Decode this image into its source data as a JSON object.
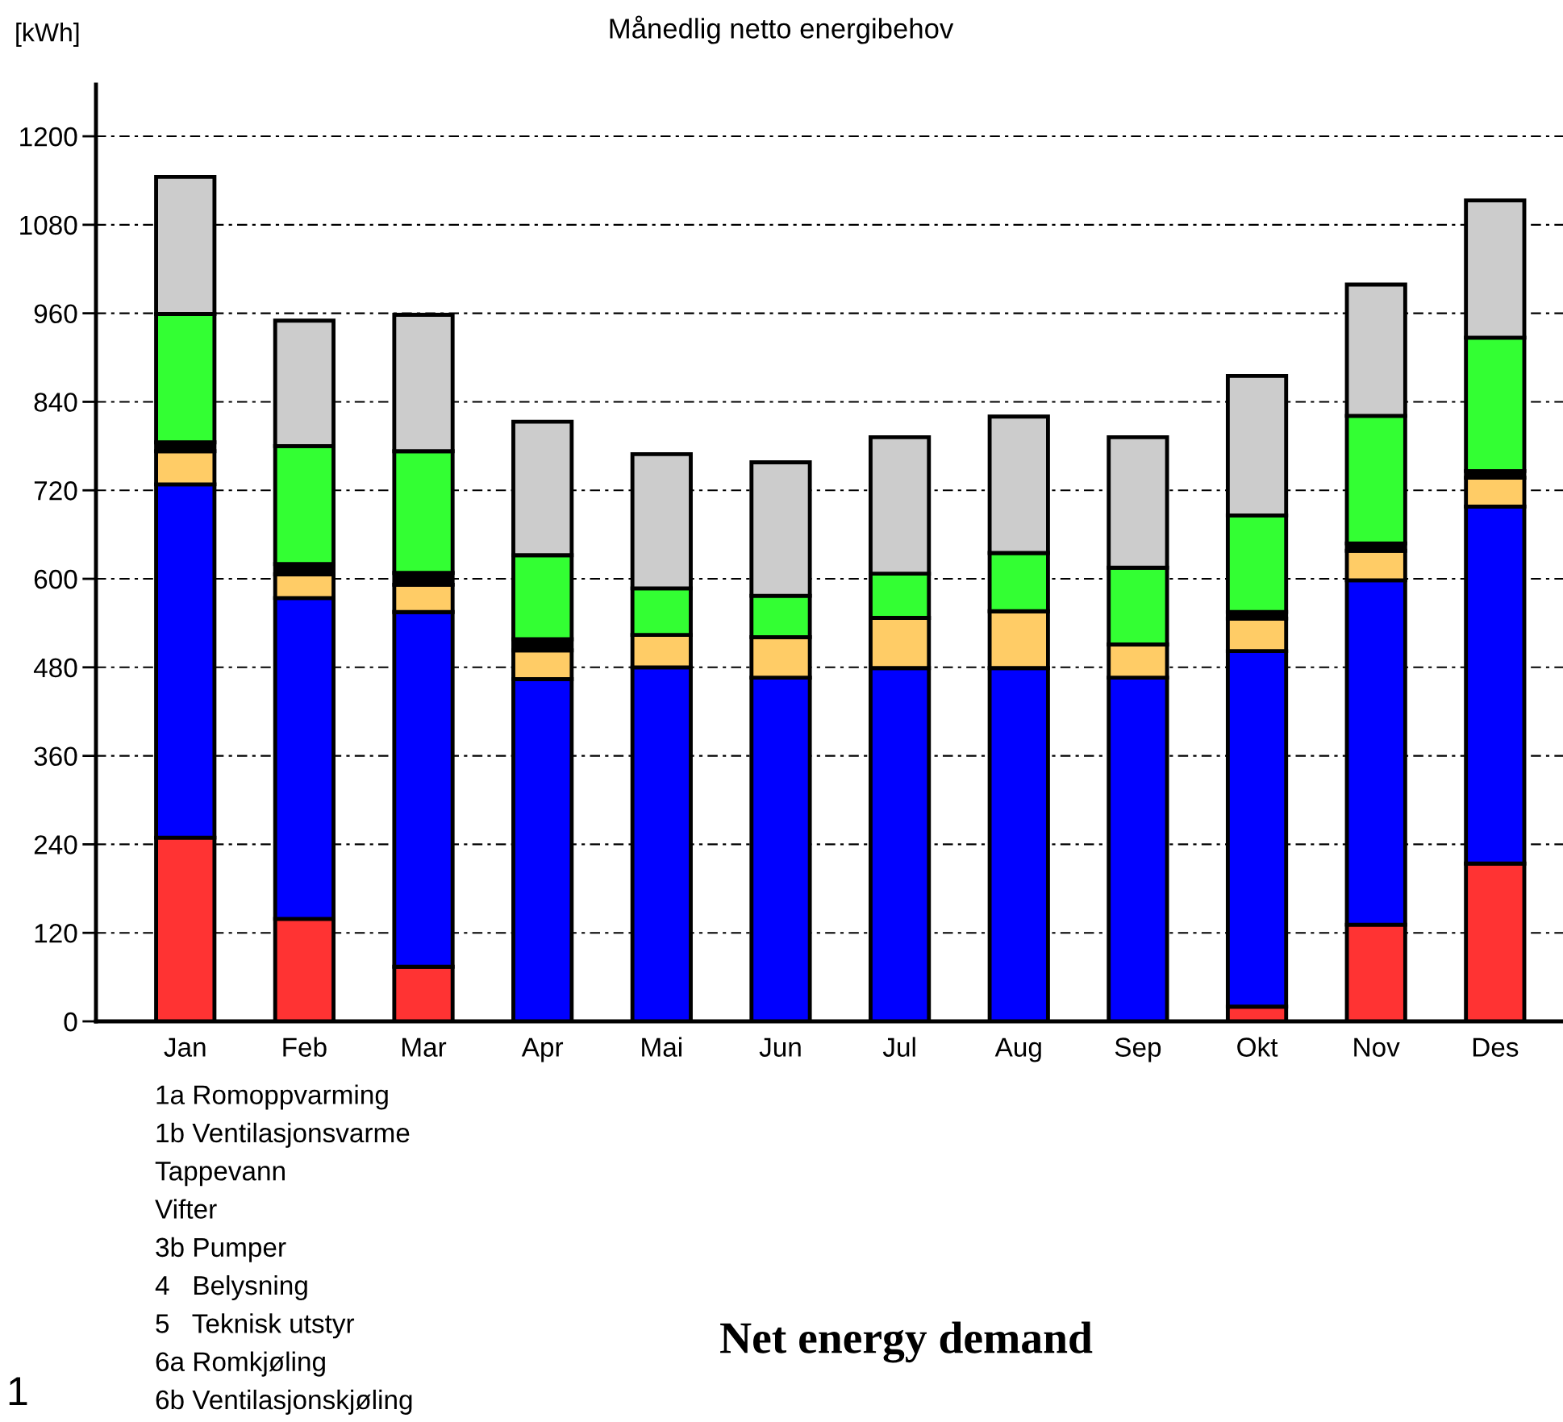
{
  "chart_data": {
    "type": "bar",
    "stacked": true,
    "title": "Månedlig netto energibehov",
    "ylabel": "[kWh]",
    "categories": [
      "Jan",
      "Feb",
      "Mar",
      "Apr",
      "Mai",
      "Jun",
      "Jul",
      "Aug",
      "Sep",
      "Okt",
      "Nov",
      "Des"
    ],
    "series": [
      {
        "color": "#ff3333",
        "values": [
          249,
          139,
          74,
          0,
          0,
          0,
          0,
          0,
          0,
          20,
          131,
          214
        ]
      },
      {
        "color": "#0000ff",
        "values": [
          479,
          435,
          481,
          464,
          480,
          466,
          479,
          479,
          466,
          482,
          467,
          484
        ]
      },
      {
        "color": "#ffcc66",
        "values": [
          45,
          32,
          37,
          39,
          44,
          55,
          68,
          77,
          45,
          44,
          40,
          39
        ]
      },
      {
        "color": "#000000",
        "values": [
          12,
          14,
          16,
          15,
          null,
          null,
          null,
          null,
          null,
          9,
          10,
          9
        ]
      },
      {
        "color": "#33ff33",
        "values": [
          174,
          160,
          165,
          114,
          63,
          56,
          60,
          79,
          104,
          131,
          173,
          181
        ]
      },
      {
        "color": "#cccccc",
        "values": [
          186,
          170,
          185,
          181,
          182,
          181,
          185,
          185,
          177,
          189,
          178,
          186
        ]
      }
    ],
    "ylim": [
      0,
      1270
    ],
    "yticks": [
      0,
      120,
      240,
      360,
      480,
      600,
      720,
      840,
      960,
      1080,
      1200
    ],
    "grid": "y",
    "legend": false,
    "annotations": [
      "1a Romoppvarming",
      "1b Ventilasjonsvarme",
      "Tappevann",
      "Vifter",
      "3b Pumper",
      "4   Belysning",
      "5   Teknisk utstyr",
      "6a Romkjøling",
      "6b Ventilasjonskjøling",
      "Net energy demand",
      "1"
    ]
  }
}
